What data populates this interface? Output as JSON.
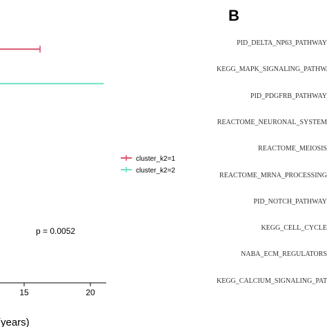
{
  "panel_a": {
    "chart_data": {
      "type": "line",
      "subtype": "kaplan-meier",
      "xlabel": "(years)",
      "xlim": [
        0,
        21
      ],
      "x_ticks": [
        15,
        20
      ],
      "series": [
        {
          "name": "cluster_k2=1",
          "color": "#d9536b",
          "y": 0.88,
          "x_end": 16.2,
          "censor_x": 16.2
        },
        {
          "name": "cluster_k2=2",
          "color": "#6fe0c4",
          "y": 0.75,
          "x_end": 21,
          "censor_x": null
        }
      ],
      "annotation": "p = 0.0052",
      "legend_placement": "right"
    }
  },
  "panel_b": {
    "label": "B",
    "pathways": [
      "PID_DELTA_NP63_PATHWAY",
      "KEGG_MAPK_SIGNALING_PATHWAY",
      "PID_PDGFRB_PATHWAY",
      "REACTOME_NEURONAL_SYSTEM",
      "REACTOME_MEIOSIS",
      "REACTOME_MRNA_PROCESSING",
      "PID_NOTCH_PATHWAY",
      "KEGG_CELL_CYCLE",
      "NABA_ECM_REGULATORS",
      "KEGG_CALCIUM_SIGNALING_PATHWAY"
    ]
  }
}
